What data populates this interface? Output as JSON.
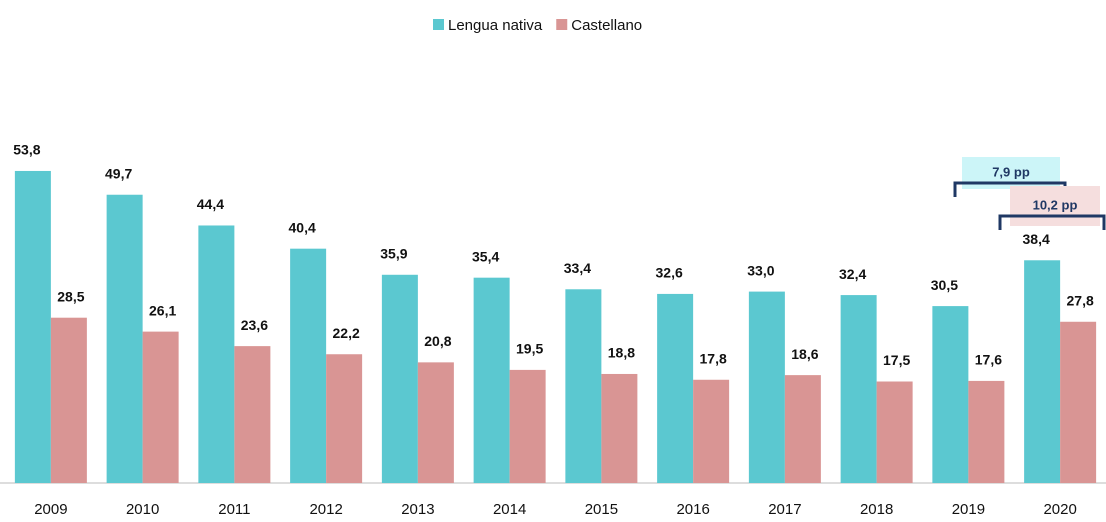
{
  "chart_data": {
    "type": "bar",
    "categories": [
      "2009",
      "2010",
      "2011",
      "2012",
      "2013",
      "2014",
      "2015",
      "2016",
      "2017",
      "2018",
      "2019",
      "2020"
    ],
    "series": [
      {
        "name": "Lengua nativa",
        "color": "#5bc8d0",
        "values": [
          53.8,
          49.7,
          44.4,
          40.4,
          35.9,
          35.4,
          33.4,
          32.6,
          33.0,
          32.4,
          30.5,
          38.4
        ],
        "value_labels": [
          "53,8",
          "49,7",
          "44,4",
          "40,4",
          "35,9",
          "35,4",
          "33,4",
          "32,6",
          "33,0",
          "32,4",
          "30,5",
          "38,4"
        ]
      },
      {
        "name": "Castellano",
        "color": "#d99594",
        "values": [
          28.5,
          26.1,
          23.6,
          22.2,
          20.8,
          19.5,
          18.8,
          17.8,
          18.6,
          17.5,
          17.6,
          27.8
        ],
        "value_labels": [
          "28,5",
          "26,1",
          "23,6",
          "22,2",
          "20,8",
          "19,5",
          "18,8",
          "17,8",
          "18,6",
          "17,5",
          "17,6",
          "27,8"
        ]
      }
    ],
    "ylim": [
      0,
      60
    ],
    "legend": "top",
    "annotations": [
      {
        "text": "7,9 pp",
        "color": "#ccf5f8"
      },
      {
        "text": "10,2 pp",
        "color": "#f5dede"
      }
    ]
  }
}
